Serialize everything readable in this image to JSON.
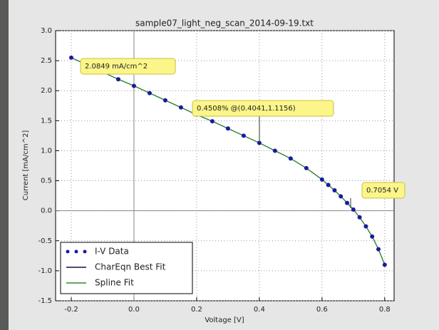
{
  "chart_data": {
    "type": "scatter",
    "title": "sample07_light_neg_scan_2014-09-19.txt",
    "xlabel": "Voltage [V]",
    "ylabel": "Current [mA/cm^2]",
    "x": [
      -0.2,
      -0.15,
      -0.1,
      -0.05,
      0,
      0.05,
      0.1,
      0.15,
      0.2,
      0.25,
      0.3,
      0.35,
      0.4,
      0.45,
      0.5,
      0.55,
      0.6,
      0.62,
      0.64,
      0.66,
      0.68,
      0.7,
      0.72,
      0.74,
      0.76,
      0.78,
      0.8
    ],
    "series": [
      {
        "name": "I-V Data",
        "color": "#1a1aa0",
        "style": "points",
        "values": [
          2.55,
          2.43,
          2.31,
          2.19,
          2.08,
          1.96,
          1.84,
          1.72,
          1.6,
          1.49,
          1.37,
          1.25,
          1.13,
          1.0,
          0.87,
          0.71,
          0.52,
          0.43,
          0.34,
          0.24,
          0.13,
          0.02,
          -0.11,
          -0.26,
          -0.43,
          -0.64,
          -0.9
        ]
      },
      {
        "name": "CharEqn Best Fit",
        "color": "#10104a",
        "style": "line",
        "values": [
          2.55,
          2.43,
          2.31,
          2.19,
          2.08,
          1.96,
          1.84,
          1.72,
          1.6,
          1.49,
          1.37,
          1.25,
          1.13,
          1.0,
          0.87,
          0.71,
          0.52,
          0.43,
          0.34,
          0.24,
          0.13,
          0.02,
          -0.11,
          -0.26,
          -0.43,
          -0.64,
          -0.9
        ]
      },
      {
        "name": "Spline Fit",
        "color": "#2e8b2e",
        "style": "line",
        "values": [
          2.55,
          2.43,
          2.31,
          2.19,
          2.08,
          1.96,
          1.84,
          1.72,
          1.6,
          1.49,
          1.37,
          1.25,
          1.13,
          1.0,
          0.87,
          0.71,
          0.52,
          0.43,
          0.34,
          0.24,
          0.13,
          0.02,
          -0.11,
          -0.26,
          -0.43,
          -0.64,
          -0.9
        ]
      }
    ],
    "xlim": [
      -0.25,
      0.83
    ],
    "ylim": [
      -1.5,
      3.0
    ],
    "xticks": [
      {
        "value": -0.2,
        "label": "-0.2"
      },
      {
        "value": 0,
        "label": "0.0"
      },
      {
        "value": 0.2,
        "label": "0.2"
      },
      {
        "value": 0.4,
        "label": "0.4"
      },
      {
        "value": 0.6,
        "label": "0.6"
      },
      {
        "value": 0.8,
        "label": "0.8"
      }
    ],
    "yticks": [
      {
        "value": -1.5,
        "label": "-1.5"
      },
      {
        "value": -1,
        "label": "-1.0"
      },
      {
        "value": -0.5,
        "label": "-0.5"
      },
      {
        "value": 0,
        "label": "0.0"
      },
      {
        "value": 0.5,
        "label": "0.5"
      },
      {
        "value": 1,
        "label": "1.0"
      },
      {
        "value": 1.5,
        "label": "1.5"
      },
      {
        "value": 2,
        "label": "2.0"
      },
      {
        "value": 2.5,
        "label": "2.5"
      },
      {
        "value": 3,
        "label": "3.0"
      }
    ],
    "grid": true,
    "legend": "lower left",
    "annotations": [
      "2.0849 mA/cm^2",
      "0.4508% @(0.4041,1.1156)",
      "0.7054 V"
    ]
  }
}
